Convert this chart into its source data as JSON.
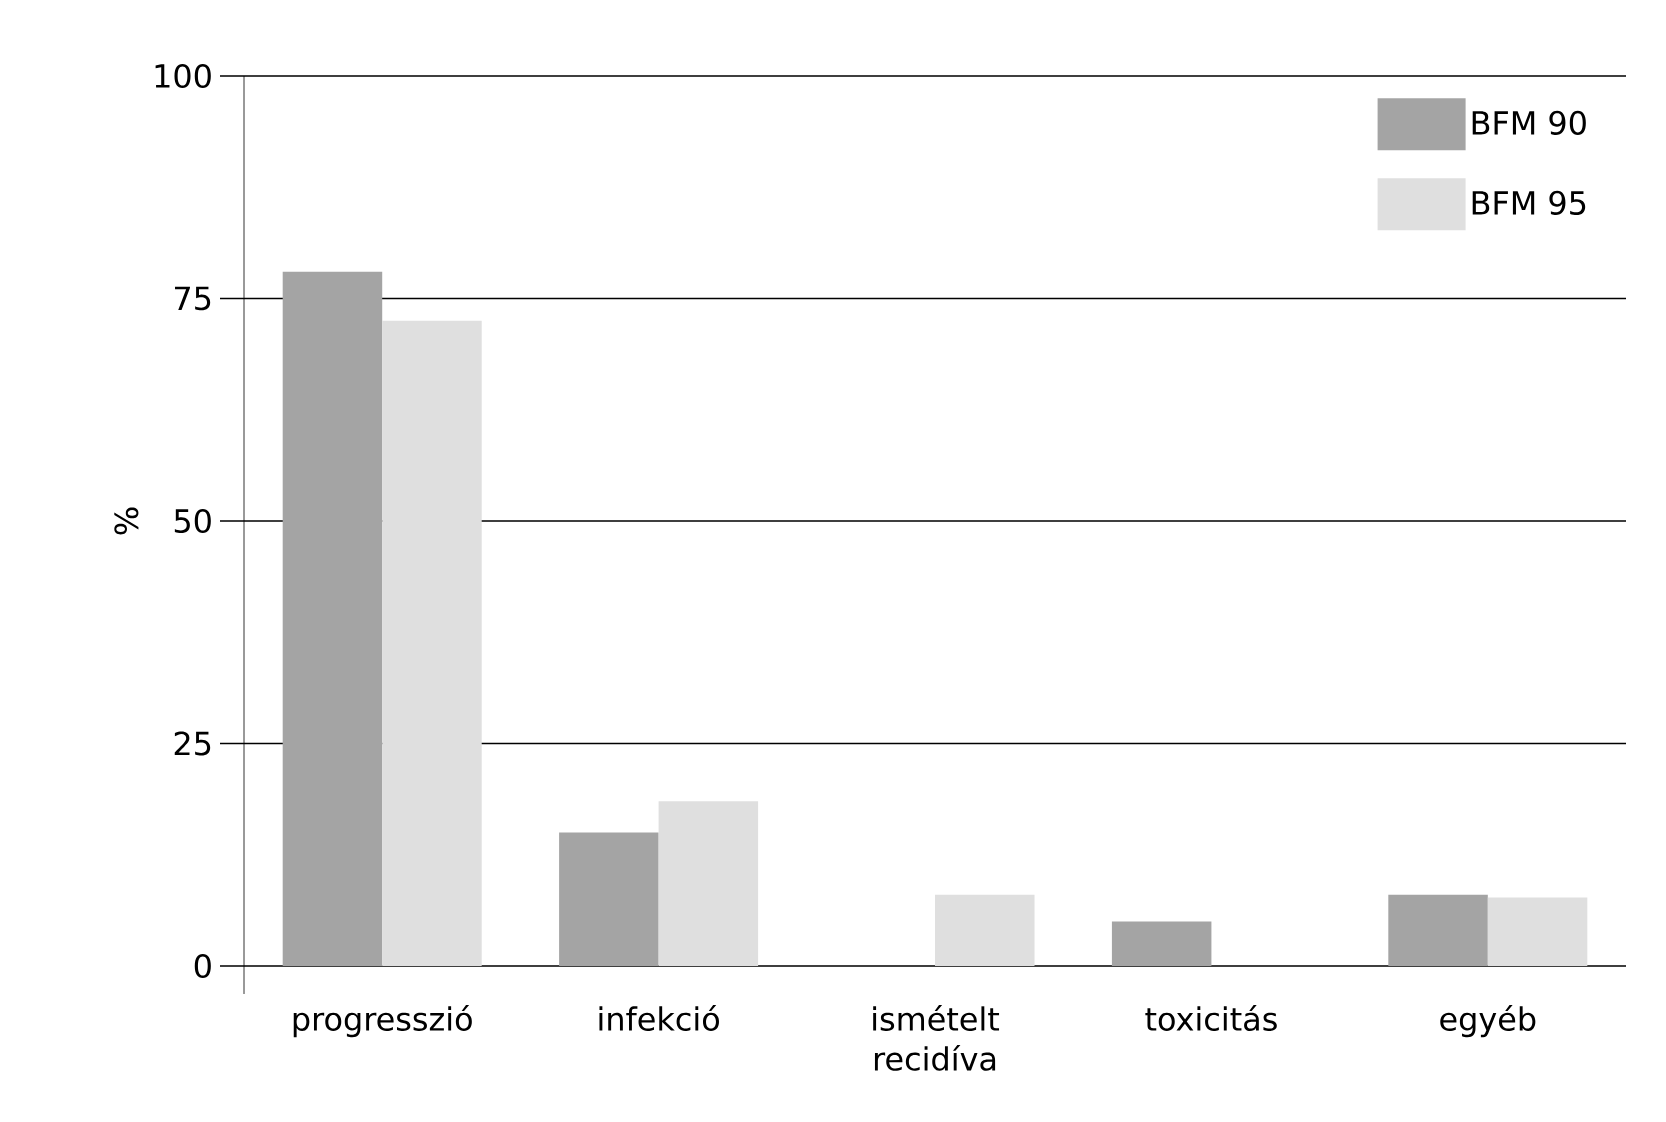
{
  "chart_data": {
    "type": "bar",
    "ylabel": "%",
    "categories": [
      "progresszió",
      "infekció",
      "ismételt recidíva",
      "toxicitás",
      "egyéb"
    ],
    "series": [
      {
        "name": "BFM 90",
        "color": "#a4a4a4",
        "values": [
          78,
          15,
          0,
          5,
          8
        ]
      },
      {
        "name": "BFM 95",
        "color": "#dfdfdf",
        "values": [
          72.5,
          18.5,
          8,
          0,
          7.7
        ]
      }
    ],
    "ylim": [
      0,
      100
    ],
    "yticks": [
      0,
      25,
      50,
      75,
      100
    ],
    "grid": "y",
    "legend": "top right"
  }
}
